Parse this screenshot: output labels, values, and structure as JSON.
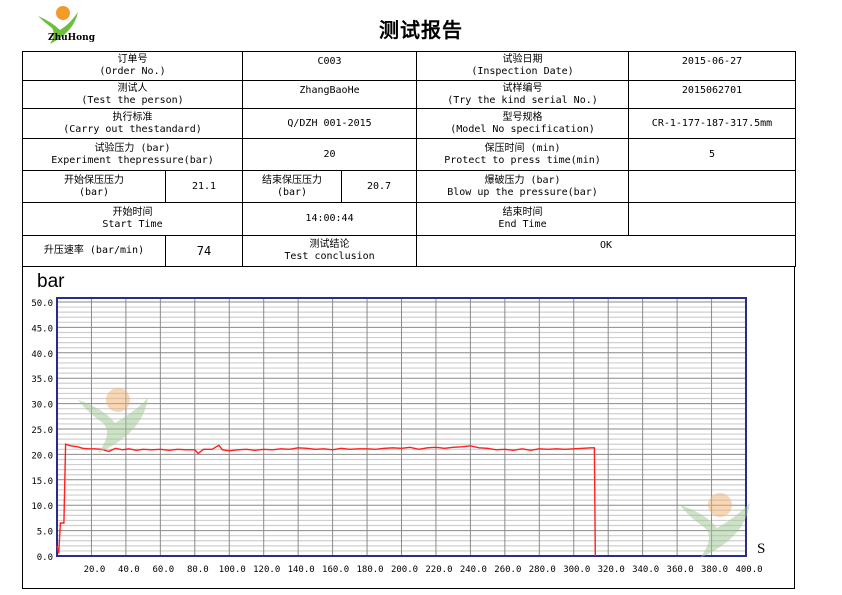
{
  "header": {
    "title": "测试报告",
    "logo_text": "ZhuHong"
  },
  "report": {
    "order_no_label": "订单号",
    "order_no_label_en": "(Order No.)",
    "order_no": "C003",
    "inspection_date_label": "试验日期",
    "inspection_date_label_en": "(Inspection Date)",
    "inspection_date": "2015-06-27",
    "tester_label": "测试人",
    "tester_label_en": "(Test the person)",
    "tester": "ZhangBaoHe",
    "serial_label": "试样编号",
    "serial_label_en": "(Try the kind serial No.)",
    "serial": "2015062701",
    "standard_label": "执行标准",
    "standard_label_en": "(Carry out thestandard)",
    "standard": "Q/DZH 001-2015",
    "model_label": "型号规格",
    "model_label_en": "(Model No specification)",
    "model": "CR-1-177-187-317.5mm",
    "test_pressure_label": "试验压力 (bar)",
    "test_pressure_label_en": "Experiment thepressure(bar)",
    "test_pressure": "20",
    "hold_time_label": "保压时间 (min)",
    "hold_time_label_en": "Protect to press time(min)",
    "hold_time": "5",
    "start_hold_label": "开始保压压力",
    "start_hold_label_en": "(bar)",
    "start_hold": "21.1",
    "end_hold_label": "结束保压压力",
    "end_hold_label_en": "(bar)",
    "end_hold": "20.7",
    "burst_label": "爆破压力 (bar)",
    "burst_label_en": "Blow up the pressure(bar)",
    "burst": "",
    "start_time_label": "开始时间",
    "start_time_label_en": "Start Time",
    "start_time": "14:00:44",
    "end_time_label": "结束时间",
    "end_time_label_en": "End Time",
    "end_time": "",
    "rate_label": "升压速率 (bar/min)",
    "rate": "74",
    "conclusion_label": "测试结论",
    "conclusion_label_en": "Test conclusion",
    "conclusion": "OK"
  },
  "chart_data": {
    "type": "line",
    "ylabel": "bar",
    "xlabel": "S",
    "xlim": [
      0,
      400
    ],
    "ylim": [
      0,
      50
    ],
    "xticks": [
      "20.0",
      "40.0",
      "60.0",
      "80.0",
      "100.0",
      "120.0",
      "140.0",
      "160.0",
      "180.0",
      "200.0",
      "220.0",
      "240.0",
      "260.0",
      "280.0",
      "300.0",
      "320.0",
      "340.0",
      "360.0",
      "380.0",
      "400.0"
    ],
    "yticks": [
      "0.0",
      "5.0",
      "10.0",
      "15.0",
      "20.0",
      "25.0",
      "30.0",
      "35.0",
      "40.0",
      "45.0",
      "50.0"
    ],
    "grid": true,
    "line_color": "#ff2020",
    "x": [
      0,
      1,
      2,
      3,
      4,
      5,
      6,
      8,
      10,
      12,
      15,
      18,
      22,
      26,
      30,
      34,
      38,
      42,
      46,
      50,
      55,
      60,
      65,
      70,
      75,
      80,
      82,
      85,
      90,
      94,
      96,
      100,
      105,
      110,
      115,
      120,
      125,
      130,
      135,
      140,
      145,
      150,
      155,
      160,
      165,
      170,
      175,
      180,
      185,
      190,
      195,
      200,
      205,
      210,
      215,
      220,
      225,
      230,
      235,
      240,
      245,
      250,
      255,
      260,
      265,
      270,
      275,
      280,
      285,
      290,
      295,
      300,
      305,
      310,
      312,
      312.5
    ],
    "y": [
      2.0,
      0.5,
      6.5,
      6.5,
      6.5,
      22.0,
      21.9,
      21.7,
      21.6,
      21.5,
      21.2,
      21.1,
      21.1,
      21.0,
      20.6,
      21.2,
      20.9,
      21.1,
      20.8,
      21.0,
      20.9,
      21.0,
      20.8,
      21.0,
      20.9,
      20.9,
      20.2,
      21.0,
      21.0,
      21.8,
      20.9,
      20.7,
      20.9,
      21.0,
      20.8,
      21.0,
      20.9,
      21.1,
      21.0,
      21.3,
      21.2,
      21.0,
      21.1,
      20.9,
      21.2,
      21.0,
      21.1,
      21.1,
      21.0,
      21.2,
      21.3,
      21.2,
      21.4,
      21.0,
      21.3,
      21.4,
      21.2,
      21.4,
      21.5,
      21.7,
      21.3,
      21.2,
      20.9,
      21.0,
      20.8,
      21.1,
      20.8,
      21.1,
      21.0,
      21.1,
      21.0,
      21.1,
      21.2,
      21.3,
      21.3,
      0.0
    ]
  }
}
